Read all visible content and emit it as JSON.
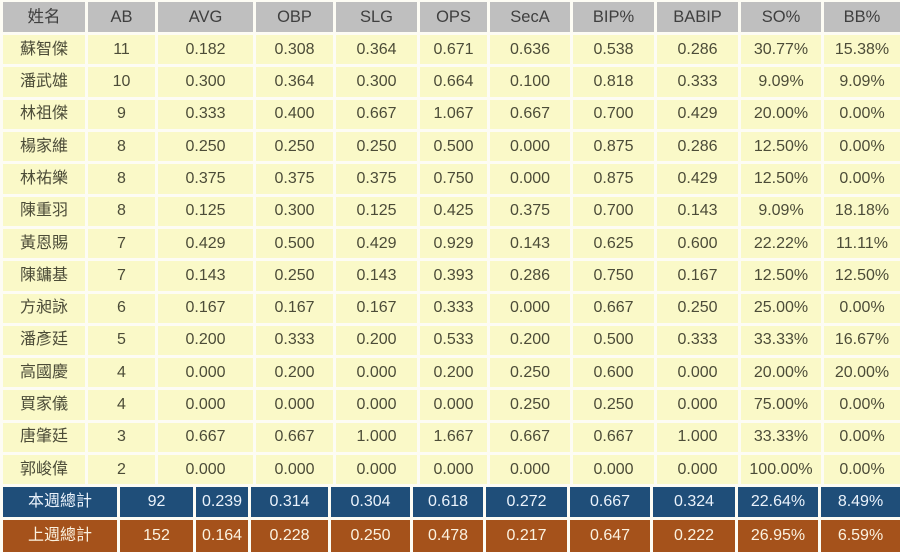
{
  "chart_data": {
    "type": "table",
    "columns": [
      "姓名",
      "AB",
      "AVG",
      "OBP",
      "SLG",
      "OPS",
      "SecA",
      "BIP%",
      "BABIP",
      "SO%",
      "BB%"
    ],
    "rows": [
      [
        "蘇智傑",
        "11",
        "0.182",
        "0.308",
        "0.364",
        "0.671",
        "0.636",
        "0.538",
        "0.286",
        "30.77%",
        "15.38%"
      ],
      [
        "潘武雄",
        "10",
        "0.300",
        "0.364",
        "0.300",
        "0.664",
        "0.100",
        "0.818",
        "0.333",
        "9.09%",
        "9.09%"
      ],
      [
        "林祖傑",
        "9",
        "0.333",
        "0.400",
        "0.667",
        "1.067",
        "0.667",
        "0.700",
        "0.429",
        "20.00%",
        "0.00%"
      ],
      [
        "楊家維",
        "8",
        "0.250",
        "0.250",
        "0.250",
        "0.500",
        "0.000",
        "0.875",
        "0.286",
        "12.50%",
        "0.00%"
      ],
      [
        "林祐樂",
        "8",
        "0.375",
        "0.375",
        "0.375",
        "0.750",
        "0.000",
        "0.875",
        "0.429",
        "12.50%",
        "0.00%"
      ],
      [
        "陳重羽",
        "8",
        "0.125",
        "0.300",
        "0.125",
        "0.425",
        "0.375",
        "0.700",
        "0.143",
        "9.09%",
        "18.18%"
      ],
      [
        "黃恩賜",
        "7",
        "0.429",
        "0.500",
        "0.429",
        "0.929",
        "0.143",
        "0.625",
        "0.600",
        "22.22%",
        "11.11%"
      ],
      [
        "陳鏞基",
        "7",
        "0.143",
        "0.250",
        "0.143",
        "0.393",
        "0.286",
        "0.750",
        "0.167",
        "12.50%",
        "12.50%"
      ],
      [
        "方昶詠",
        "6",
        "0.167",
        "0.167",
        "0.167",
        "0.333",
        "0.000",
        "0.667",
        "0.250",
        "25.00%",
        "0.00%"
      ],
      [
        "潘彥廷",
        "5",
        "0.200",
        "0.333",
        "0.200",
        "0.533",
        "0.200",
        "0.500",
        "0.333",
        "33.33%",
        "16.67%"
      ],
      [
        "高國慶",
        "4",
        "0.000",
        "0.200",
        "0.000",
        "0.200",
        "0.250",
        "0.600",
        "0.000",
        "20.00%",
        "20.00%"
      ],
      [
        "買家儀",
        "4",
        "0.000",
        "0.000",
        "0.000",
        "0.000",
        "0.250",
        "0.250",
        "0.000",
        "75.00%",
        "0.00%"
      ],
      [
        "唐肇廷",
        "3",
        "0.667",
        "0.667",
        "1.000",
        "1.667",
        "0.667",
        "0.667",
        "1.000",
        "33.33%",
        "0.00%"
      ],
      [
        "郭峻偉",
        "2",
        "0.000",
        "0.000",
        "0.000",
        "0.000",
        "0.000",
        "0.000",
        "0.000",
        "100.00%",
        "0.00%"
      ]
    ],
    "totals": [
      [
        "本週總計",
        "92",
        "0.239",
        "0.314",
        "0.304",
        "0.618",
        "0.272",
        "0.667",
        "0.324",
        "22.64%",
        "8.49%"
      ],
      [
        "上週總計",
        "152",
        "0.164",
        "0.228",
        "0.250",
        "0.478",
        "0.217",
        "0.647",
        "0.222",
        "26.95%",
        "6.59%"
      ]
    ]
  },
  "colors": {
    "header_bg": "#bfbfbf",
    "header_text": "#3f3f3f",
    "row_bg": "#faf9c8",
    "body_text": "#4c4c38",
    "grid_line": "#fdfcf4",
    "week_total_bg": "#1f4e79",
    "week_total_text": "#eaf2fb",
    "prev_week_total_bg": "#a5521b",
    "prev_week_total_text": "#fbf2e0"
  }
}
